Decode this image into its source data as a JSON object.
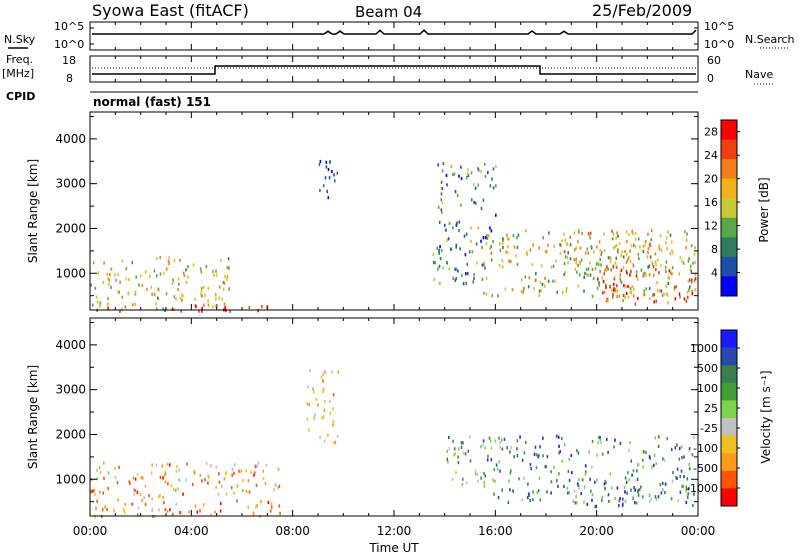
{
  "header": {
    "title": "Syowa East (fitACF)",
    "beam": "Beam 04",
    "date": "25/Feb/2009"
  },
  "status_panels": {
    "nsky_label": "N.Sky",
    "nsky_ticks": [
      "10^5",
      "10^0"
    ],
    "nsearch_label": "N.Search",
    "nsearch_ticks": [
      "10^5",
      "10^0"
    ],
    "freq_label_1": "Freq.",
    "freq_label_2": "[MHz]",
    "freq_ticks": [
      "18",
      "8"
    ],
    "nave_label": "Nave",
    "nave_ticks": [
      "60",
      "0"
    ],
    "cpid_label": "CPID",
    "cpid_value": "normal (fast) 151"
  },
  "colors": {
    "power_scale": [
      "#0000ff",
      "#1f4ea8",
      "#2f7d5a",
      "#58a84a",
      "#c9c93a",
      "#f2b21a",
      "#f57e1a",
      "#f04010",
      "#ff0000"
    ],
    "velocity_scale": [
      "#ff0000",
      "#ff5500",
      "#ff9a1a",
      "#f0c020",
      "#c0c0c0",
      "#7ed34a",
      "#3f9d3a",
      "#3c7d4c",
      "#2a48b0",
      "#1a1aff"
    ]
  },
  "chart_data": [
    {
      "type": "heatmap",
      "name": "power",
      "ylabel": "Slant Range [km]",
      "xlabel": "Time UT",
      "xlim": [
        0,
        24
      ],
      "ylim": [
        180,
        4600
      ],
      "x_tick_labels": [
        "00:00",
        "04:00",
        "08:00",
        "12:00",
        "16:00",
        "20:00",
        "00:00"
      ],
      "y_ticks": [
        1000,
        2000,
        3000,
        4000
      ],
      "colorbar": {
        "label": "Power [dB]",
        "range": [
          0,
          30
        ],
        "tick_labels": [
          "4",
          "8",
          "12",
          "16",
          "20",
          "24",
          "28"
        ]
      },
      "regions": [
        {
          "t": [
            0.0,
            5.5
          ],
          "r": [
            200,
            1400
          ],
          "level": 0.55
        },
        {
          "t": [
            0.0,
            7.0
          ],
          "r": [
            180,
            320
          ],
          "level": 0.95
        },
        {
          "t": [
            9.0,
            9.8
          ],
          "r": [
            2700,
            3600
          ],
          "level": 0.15
        },
        {
          "t": [
            13.5,
            16.0
          ],
          "r": [
            800,
            3500
          ],
          "level": 0.3
        },
        {
          "t": [
            15.5,
            23.9
          ],
          "r": [
            500,
            2000
          ],
          "level": 0.5
        },
        {
          "t": [
            20.0,
            23.9
          ],
          "r": [
            300,
            1200
          ],
          "level": 0.8
        },
        {
          "t": [
            18.5,
            22.5
          ],
          "r": [
            1000,
            2000
          ],
          "level": 0.6
        }
      ]
    },
    {
      "type": "heatmap",
      "name": "velocity",
      "ylabel": "Slant Range [km]",
      "xlabel": "Time UT",
      "xlim": [
        0,
        24
      ],
      "ylim": [
        180,
        4600
      ],
      "x_tick_labels": [
        "00:00",
        "04:00",
        "08:00",
        "12:00",
        "16:00",
        "20:00",
        "00:00"
      ],
      "y_ticks": [
        1000,
        2000,
        3000,
        4000
      ],
      "colorbar": {
        "label": "Velocity [m s⁻¹]",
        "range": [
          -1500,
          1500
        ],
        "tick_labels": [
          "1000",
          "500",
          "100",
          "25",
          "-25",
          "-100",
          "-500",
          "-1000"
        ]
      },
      "regions": [
        {
          "t": [
            0.0,
            7.5
          ],
          "r": [
            200,
            1400
          ],
          "level": 0.3
        },
        {
          "t": [
            8.5,
            9.8
          ],
          "r": [
            1800,
            3500
          ],
          "level": 0.35
        },
        {
          "t": [
            14.0,
            16.0
          ],
          "r": [
            900,
            2000
          ],
          "level": 0.6
        },
        {
          "t": [
            15.5,
            23.9
          ],
          "r": [
            500,
            2000
          ],
          "level": 0.7
        },
        {
          "t": [
            19.0,
            23.9
          ],
          "r": [
            400,
            900
          ],
          "level": 0.75
        }
      ]
    }
  ]
}
